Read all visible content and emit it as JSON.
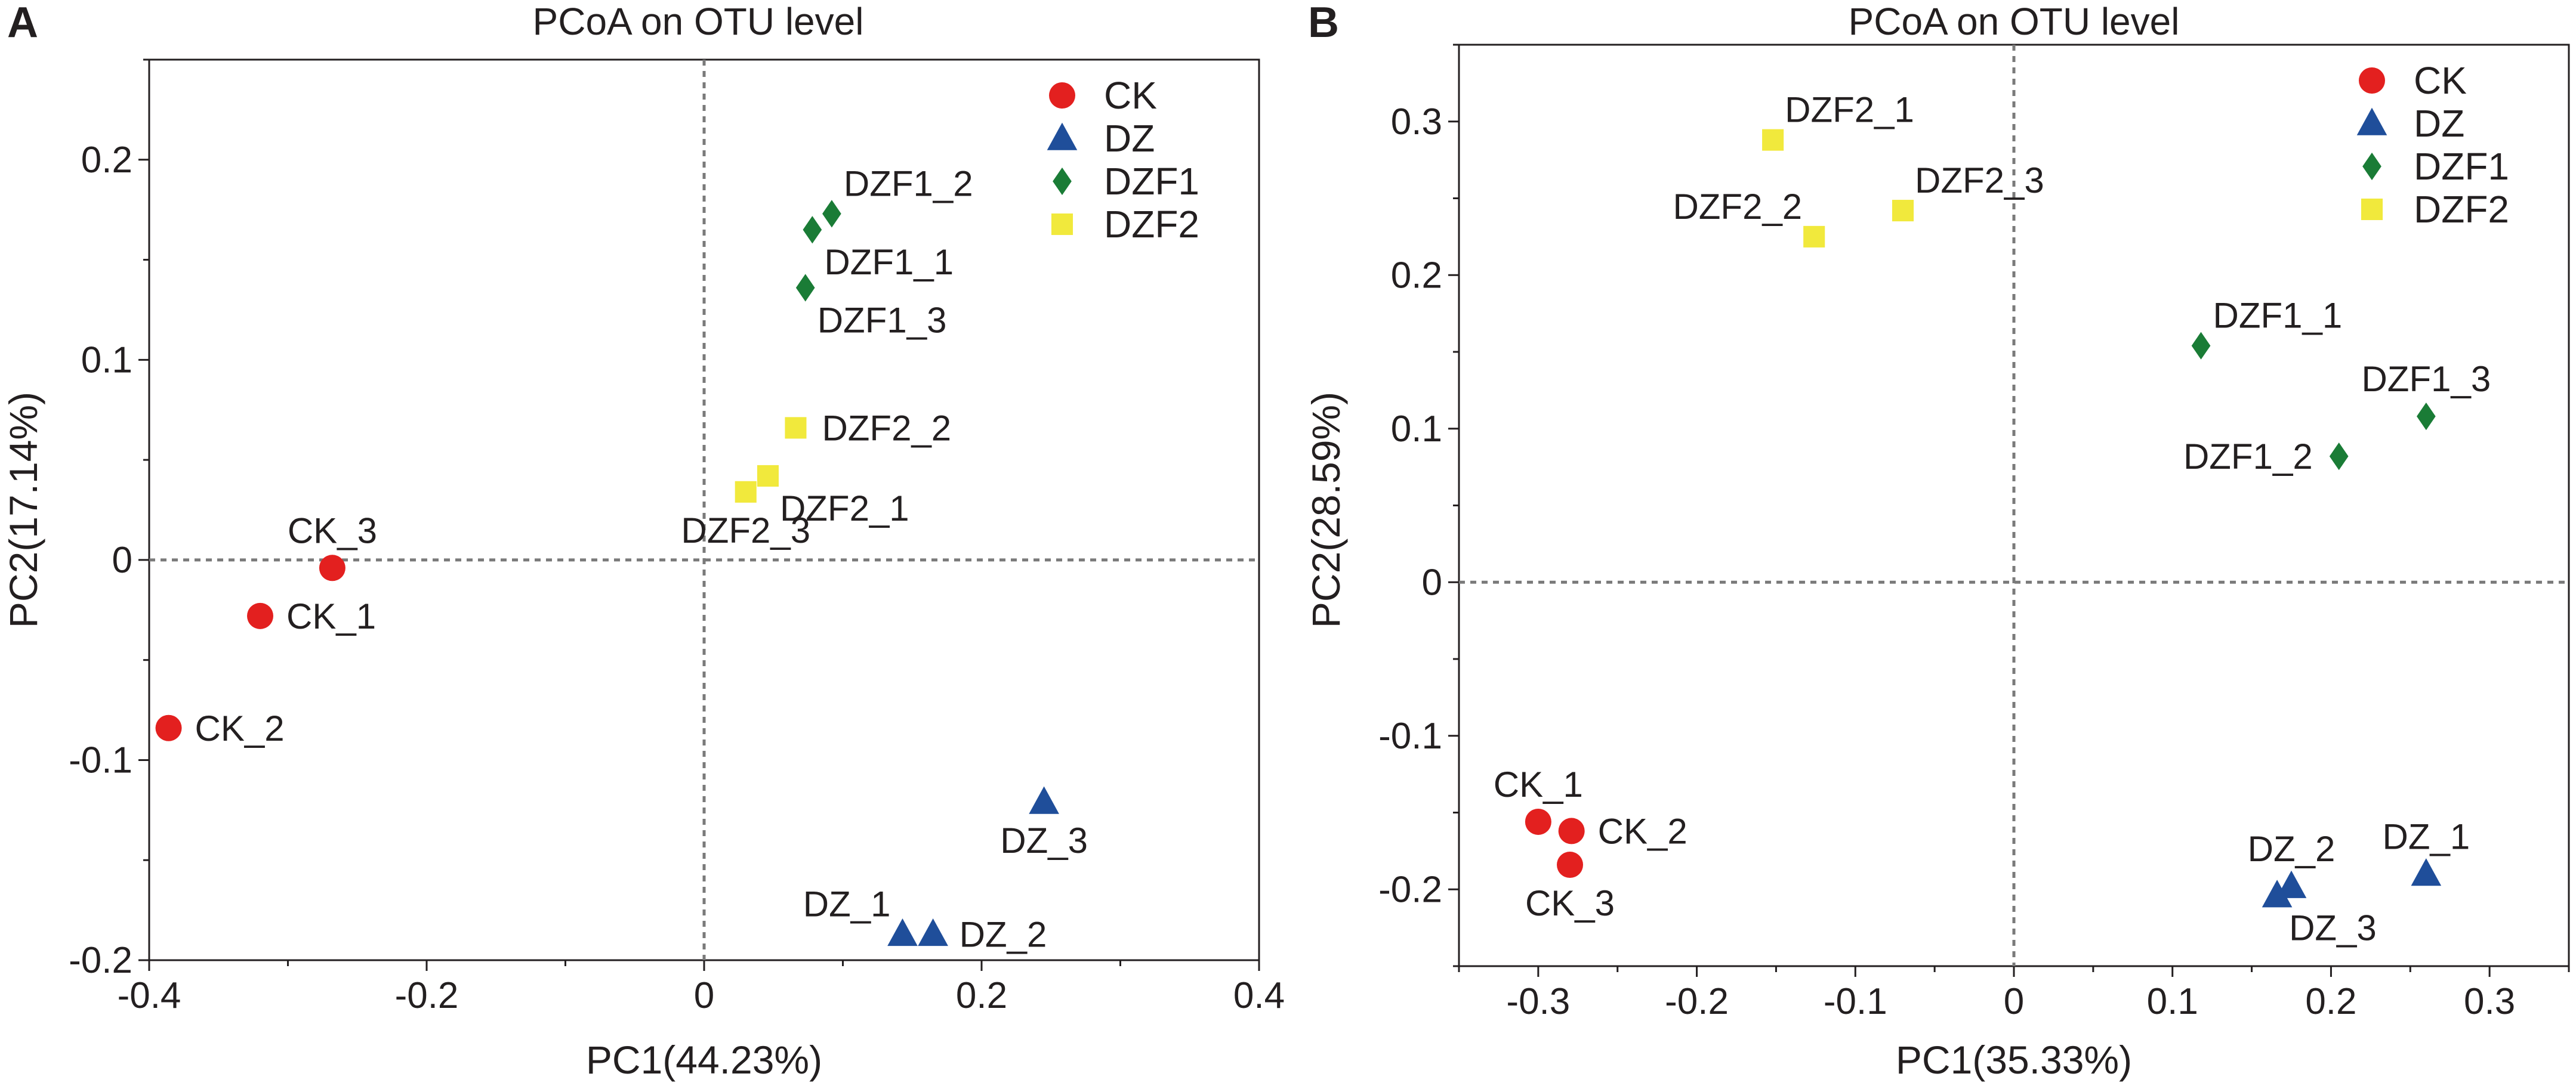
{
  "colors": {
    "CK": "#e3201f",
    "DZ": "#1f4e9a",
    "DZF1": "#1a7c36",
    "DZF2": "#f1e93c",
    "axis": "#231f20",
    "dash": "#7a7a7a"
  },
  "chart_data": [
    {
      "panel_label": "A",
      "type": "scatter",
      "title": "PCoA on OTU level",
      "xlabel": "PC1(44.23%)",
      "ylabel": "PC2(17.14%)",
      "xlim": [
        -0.4,
        0.4
      ],
      "ylim": [
        -0.2,
        0.25
      ],
      "xticks": [
        -0.4,
        -0.2,
        0,
        0.2,
        0.4
      ],
      "xtick_labels": [
        "-0.4",
        "-0.2",
        "0",
        "0.2",
        "0.4"
      ],
      "yticks": [
        -0.2,
        -0.1,
        0,
        0.1,
        0.2
      ],
      "ytick_labels": [
        "-0.2",
        "-0.1",
        "0",
        "0.1",
        "0.2"
      ],
      "legend_position": "top-right",
      "legend": [
        {
          "group": "CK",
          "label": "CK",
          "marker": "circle"
        },
        {
          "group": "DZ",
          "label": "DZ",
          "marker": "triangle"
        },
        {
          "group": "DZF1",
          "label": "DZF1",
          "marker": "diamond"
        },
        {
          "group": "DZF2",
          "label": "DZF2",
          "marker": "square"
        }
      ],
      "points": [
        {
          "label": "CK_1",
          "group": "CK",
          "x": -0.32,
          "y": -0.028,
          "label_pos": "right"
        },
        {
          "label": "CK_2",
          "group": "CK",
          "x": -0.386,
          "y": -0.084,
          "label_pos": "right"
        },
        {
          "label": "CK_3",
          "group": "CK",
          "x": -0.268,
          "y": -0.004,
          "label_pos": "above"
        },
        {
          "label": "DZ_1",
          "group": "DZ",
          "x": 0.143,
          "y": -0.187,
          "label_pos": "above-left"
        },
        {
          "label": "DZ_2",
          "group": "DZ",
          "x": 0.165,
          "y": -0.187,
          "label_pos": "right"
        },
        {
          "label": "DZ_3",
          "group": "DZ",
          "x": 0.245,
          "y": -0.121,
          "label_pos": "below"
        },
        {
          "label": "DZF1_1",
          "group": "DZF1",
          "x": 0.078,
          "y": 0.165,
          "label_pos": "below-right"
        },
        {
          "label": "DZF1_2",
          "group": "DZF1",
          "x": 0.092,
          "y": 0.173,
          "label_pos": "above-right"
        },
        {
          "label": "DZF1_3",
          "group": "DZF1",
          "x": 0.073,
          "y": 0.136,
          "label_pos": "below-right"
        },
        {
          "label": "DZF2_1",
          "group": "DZF2",
          "x": 0.046,
          "y": 0.042,
          "label_pos": "below-right"
        },
        {
          "label": "DZF2_2",
          "group": "DZF2",
          "x": 0.066,
          "y": 0.066,
          "label_pos": "right"
        },
        {
          "label": "DZF2_3",
          "group": "DZF2",
          "x": 0.03,
          "y": 0.034,
          "label_pos": "below"
        }
      ]
    },
    {
      "panel_label": "B",
      "type": "scatter",
      "title": "PCoA on OTU level",
      "xlabel": "PC1(35.33%)",
      "ylabel": "PC2(28.59%)",
      "xlim": [
        -0.35,
        0.35
      ],
      "ylim": [
        -0.25,
        0.35
      ],
      "xticks": [
        -0.3,
        -0.2,
        -0.1,
        0,
        0.1,
        0.2,
        0.3
      ],
      "xtick_labels": [
        "-0.3",
        "-0.2",
        "-0.1",
        "0",
        "0.1",
        "0.2",
        "0.3"
      ],
      "yticks": [
        -0.2,
        -0.1,
        0,
        0.1,
        0.2,
        0.3
      ],
      "ytick_labels": [
        "-0.2",
        "-0.1",
        "0",
        "0.1",
        "0.2",
        "0.3"
      ],
      "legend_position": "top-right",
      "legend": [
        {
          "group": "CK",
          "label": "CK",
          "marker": "circle"
        },
        {
          "group": "DZ",
          "label": "DZ",
          "marker": "triangle"
        },
        {
          "group": "DZF1",
          "label": "DZF1",
          "marker": "diamond"
        },
        {
          "group": "DZF2",
          "label": "DZF2",
          "marker": "square"
        }
      ],
      "points": [
        {
          "label": "CK_1",
          "group": "CK",
          "x": -0.3,
          "y": -0.156,
          "label_pos": "above"
        },
        {
          "label": "CK_2",
          "group": "CK",
          "x": -0.279,
          "y": -0.162,
          "label_pos": "right"
        },
        {
          "label": "CK_3",
          "group": "CK",
          "x": -0.28,
          "y": -0.184,
          "label_pos": "below"
        },
        {
          "label": "DZ_1",
          "group": "DZ",
          "x": 0.26,
          "y": -0.19,
          "label_pos": "above"
        },
        {
          "label": "DZ_2",
          "group": "DZ",
          "x": 0.175,
          "y": -0.198,
          "label_pos": "above"
        },
        {
          "label": "DZ_3",
          "group": "DZ",
          "x": 0.166,
          "y": -0.204,
          "label_pos": "below-right"
        },
        {
          "label": "DZF1_1",
          "group": "DZF1",
          "x": 0.118,
          "y": 0.154,
          "label_pos": "above-right"
        },
        {
          "label": "DZF1_2",
          "group": "DZF1",
          "x": 0.205,
          "y": 0.082,
          "label_pos": "left"
        },
        {
          "label": "DZF1_3",
          "group": "DZF1",
          "x": 0.26,
          "y": 0.108,
          "label_pos": "above"
        },
        {
          "label": "DZF2_1",
          "group": "DZF2",
          "x": -0.152,
          "y": 0.288,
          "label_pos": "above-right"
        },
        {
          "label": "DZF2_2",
          "group": "DZF2",
          "x": -0.126,
          "y": 0.225,
          "label_pos": "above-left"
        },
        {
          "label": "DZF2_3",
          "group": "DZF2",
          "x": -0.07,
          "y": 0.242,
          "label_pos": "above-right"
        }
      ]
    }
  ]
}
